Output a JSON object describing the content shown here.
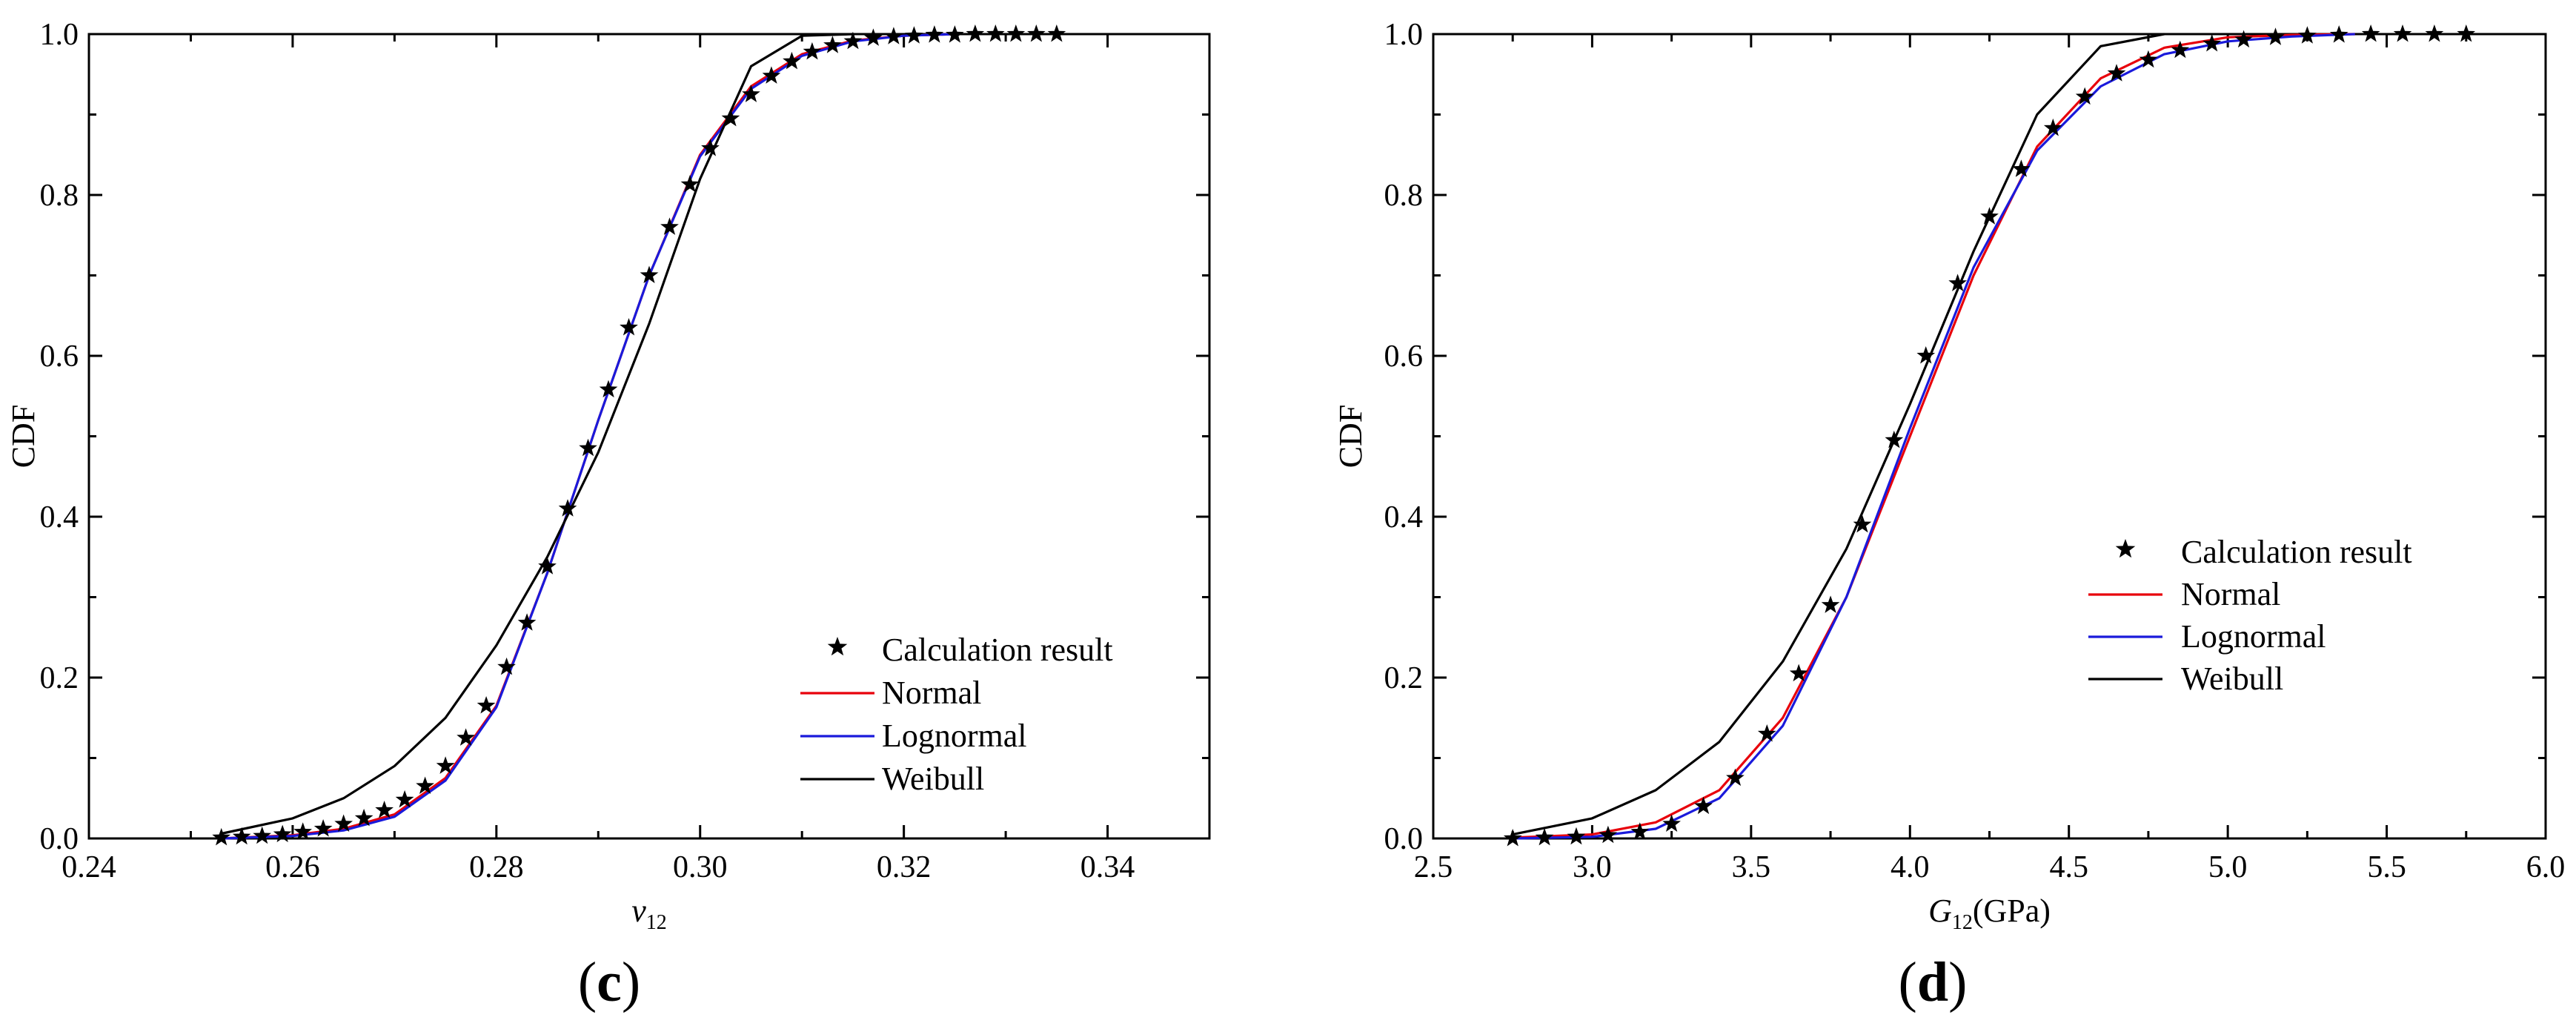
{
  "chart_data": [
    {
      "type": "line",
      "panel_label": "(c)",
      "panel_letter": "c",
      "xlabel": "v",
      "xlabel_sub": "12",
      "xlabel_suffix": "",
      "ylabel": "CDF",
      "xlim": [
        0.24,
        0.35
      ],
      "ylim": [
        0,
        1
      ],
      "xticks": [
        0.24,
        0.26,
        0.28,
        0.3,
        0.32,
        0.34
      ],
      "xtick_labels": [
        "0.24",
        "0.26",
        "0.28",
        "0.30",
        "0.32",
        "0.34"
      ],
      "yticks": [
        0,
        0.2,
        0.4,
        0.6,
        0.8,
        1.0
      ],
      "ytick_labels": [
        "0.0",
        "0.2",
        "0.4",
        "0.6",
        "0.8",
        "1.0"
      ],
      "legend_position": "bottom-right",
      "legend": [
        "Calculation result",
        "Normal",
        "Lognormal",
        "Weibull"
      ],
      "series": [
        {
          "name": "Calculation result",
          "kind": "marker",
          "color": "#000000",
          "x": [
            0.253,
            0.255,
            0.257,
            0.259,
            0.261,
            0.263,
            0.265,
            0.267,
            0.269,
            0.271,
            0.273,
            0.275,
            0.277,
            0.279,
            0.281,
            0.283,
            0.285,
            0.287,
            0.289,
            0.291,
            0.293,
            0.295,
            0.297,
            0.299,
            0.301,
            0.303,
            0.305,
            0.307,
            0.309,
            0.311,
            0.313,
            0.315,
            0.317,
            0.319,
            0.321,
            0.323,
            0.325,
            0.327,
            0.329,
            0.331,
            0.333,
            0.335
          ],
          "y": [
            0.001,
            0.002,
            0.003,
            0.005,
            0.008,
            0.012,
            0.018,
            0.025,
            0.035,
            0.048,
            0.065,
            0.09,
            0.125,
            0.165,
            0.213,
            0.268,
            0.338,
            0.41,
            0.485,
            0.558,
            0.635,
            0.7,
            0.76,
            0.813,
            0.858,
            0.895,
            0.925,
            0.948,
            0.966,
            0.978,
            0.986,
            0.991,
            0.995,
            0.997,
            0.998,
            0.999,
            0.999,
            1.0,
            1.0,
            1.0,
            1.0,
            1.0
          ]
        },
        {
          "name": "Normal",
          "kind": "line",
          "color": "#e8000b",
          "x": [
            0.253,
            0.26,
            0.265,
            0.27,
            0.275,
            0.28,
            0.285,
            0.29,
            0.295,
            0.3,
            0.305,
            0.31,
            0.315,
            0.32,
            0.325
          ],
          "y": [
            0.0,
            0.004,
            0.012,
            0.03,
            0.075,
            0.165,
            0.33,
            0.52,
            0.7,
            0.85,
            0.935,
            0.975,
            0.992,
            0.998,
            1.0
          ]
        },
        {
          "name": "Lognormal",
          "kind": "line",
          "color": "#1a1adb",
          "x": [
            0.253,
            0.26,
            0.265,
            0.27,
            0.275,
            0.28,
            0.285,
            0.29,
            0.295,
            0.3,
            0.305,
            0.31,
            0.315,
            0.32,
            0.325
          ],
          "y": [
            0.0,
            0.003,
            0.01,
            0.027,
            0.072,
            0.163,
            0.33,
            0.52,
            0.7,
            0.848,
            0.932,
            0.973,
            0.991,
            0.998,
            1.0
          ]
        },
        {
          "name": "Weibull",
          "kind": "line",
          "color": "#000000",
          "x": [
            0.253,
            0.26,
            0.265,
            0.27,
            0.275,
            0.28,
            0.285,
            0.29,
            0.295,
            0.3,
            0.305,
            0.31,
            0.315
          ],
          "y": [
            0.006,
            0.025,
            0.05,
            0.09,
            0.15,
            0.24,
            0.35,
            0.48,
            0.64,
            0.82,
            0.96,
            0.998,
            1.0
          ]
        }
      ]
    },
    {
      "type": "line",
      "panel_label": "(d)",
      "panel_letter": "d",
      "xlabel": "G",
      "xlabel_sub": "12",
      "xlabel_suffix": "(GPa)",
      "ylabel": "CDF",
      "xlim": [
        2.5,
        6.0
      ],
      "ylim": [
        0,
        1
      ],
      "xticks": [
        2.5,
        3.0,
        3.5,
        4.0,
        4.5,
        5.0,
        5.5,
        6.0
      ],
      "xtick_labels": [
        "2.5",
        "3.0",
        "3.5",
        "4.0",
        "4.5",
        "5.0",
        "5.5",
        "6.0"
      ],
      "yticks": [
        0,
        0.2,
        0.4,
        0.6,
        0.8,
        1.0
      ],
      "ytick_labels": [
        "0.0",
        "0.2",
        "0.4",
        "0.6",
        "0.8",
        "1.0"
      ],
      "legend_position": "center-right",
      "legend": [
        "Calculation result",
        "Normal",
        "Lognormal",
        "Weibull"
      ],
      "series": [
        {
          "name": "Calculation result",
          "kind": "marker",
          "color": "#000000",
          "x": [
            2.75,
            2.85,
            2.95,
            3.05,
            3.15,
            3.25,
            3.35,
            3.45,
            3.55,
            3.65,
            3.75,
            3.85,
            3.95,
            4.05,
            4.15,
            4.25,
            4.35,
            4.45,
            4.55,
            4.65,
            4.75,
            4.85,
            4.95,
            5.05,
            5.15,
            5.25,
            5.35,
            5.45,
            5.55,
            5.65,
            5.75
          ],
          "y": [
            0.0,
            0.001,
            0.002,
            0.004,
            0.008,
            0.018,
            0.04,
            0.075,
            0.13,
            0.205,
            0.29,
            0.39,
            0.495,
            0.6,
            0.69,
            0.773,
            0.832,
            0.883,
            0.922,
            0.951,
            0.968,
            0.98,
            0.988,
            0.993,
            0.996,
            0.998,
            0.999,
            1.0,
            1.0,
            1.0,
            1.0
          ]
        },
        {
          "name": "Normal",
          "kind": "line",
          "color": "#e8000b",
          "x": [
            2.75,
            3.0,
            3.2,
            3.4,
            3.6,
            3.8,
            4.0,
            4.2,
            4.4,
            4.6,
            4.8,
            5.0,
            5.2,
            5.4
          ],
          "y": [
            0.001,
            0.005,
            0.02,
            0.06,
            0.15,
            0.3,
            0.5,
            0.7,
            0.86,
            0.945,
            0.983,
            0.996,
            0.999,
            1.0
          ]
        },
        {
          "name": "Lognormal",
          "kind": "line",
          "color": "#1a1adb",
          "x": [
            2.75,
            3.0,
            3.2,
            3.4,
            3.6,
            3.8,
            4.0,
            4.2,
            4.4,
            4.6,
            4.8,
            5.0,
            5.2,
            5.4
          ],
          "y": [
            0.0,
            0.002,
            0.012,
            0.05,
            0.14,
            0.3,
            0.51,
            0.71,
            0.855,
            0.935,
            0.975,
            0.991,
            0.997,
            1.0
          ]
        },
        {
          "name": "Weibull",
          "kind": "line",
          "color": "#000000",
          "x": [
            2.75,
            3.0,
            3.2,
            3.4,
            3.6,
            3.8,
            4.0,
            4.2,
            4.4,
            4.6,
            4.8
          ],
          "y": [
            0.005,
            0.025,
            0.06,
            0.12,
            0.22,
            0.36,
            0.54,
            0.73,
            0.9,
            0.985,
            1.0
          ]
        }
      ]
    }
  ]
}
